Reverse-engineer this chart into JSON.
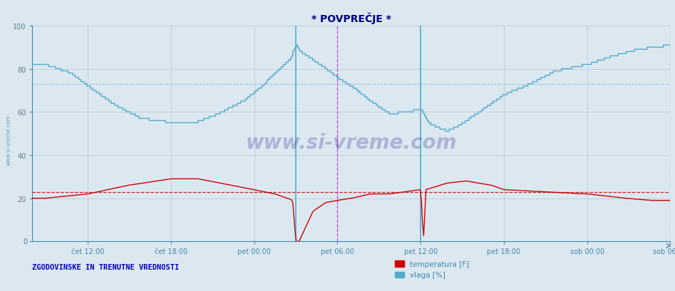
{
  "title": "* POVPREČJE *",
  "title_color": "#000080",
  "bg_color": "#dce8f0",
  "plot_bg_color": "#dce8f0",
  "grid_color": "#b8ccd8",
  "ylim": [
    0,
    100
  ],
  "yticks": [
    0,
    20,
    40,
    60,
    80,
    100
  ],
  "legend_label1": "temperatura [F]",
  "legend_label2": "vlaga [%]",
  "legend_color1": "#cc0000",
  "legend_color2": "#55aacc",
  "bottom_label": "ZGODOVINSKE IN TRENUTNE VREDNOSTI",
  "bottom_label_color": "#0000bb",
  "avg_temp": 23.0,
  "avg_hum": 73.0,
  "xtick_labels": [
    "čet 12:00",
    "čet 18:00",
    "pet 00:00",
    "pet 06:00",
    "pet 12:00",
    "pet 18:00",
    "sob 00:00",
    "sob 06:00"
  ],
  "n_points": 552,
  "cyan_vline": 0.435,
  "magenta_vline": 0.522,
  "cyan_vline2": 0.609,
  "magenta_vline2": 1.0
}
